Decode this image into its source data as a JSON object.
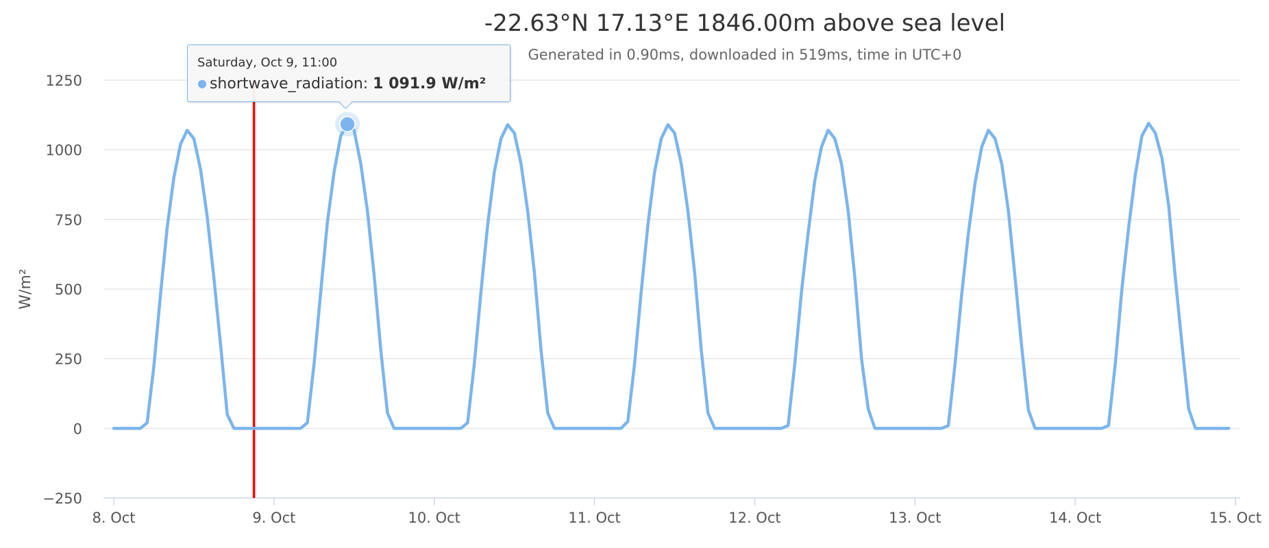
{
  "chart_data": {
    "type": "line",
    "title": "-22.63°N 17.13°E 1846.00m above sea level",
    "subtitle": "Generated in 0.90ms, downloaded in 519ms, time in UTC+0",
    "ylabel": "W/m²",
    "xlabel": "",
    "ylim": [
      -250,
      1250
    ],
    "yticks": [
      -250,
      0,
      250,
      500,
      750,
      1000,
      1250
    ],
    "xlim": [
      "2021-10-08T00:00",
      "2021-10-15T00:00"
    ],
    "xticks": [
      "8. Oct",
      "9. Oct",
      "10. Oct",
      "11. Oct",
      "12. Oct",
      "13. Oct",
      "14. Oct",
      "15. Oct"
    ],
    "grid": true,
    "legend": "none",
    "colors": {
      "series": "#7cb5ec",
      "current_time_line": "#ff0000",
      "grid": "#e6e6e6"
    },
    "current_time_marker": "2021-10-08T21:00",
    "series": [
      {
        "name": "shortwave_radiation",
        "unit": "W/m²",
        "start": "2021-10-08T00:00",
        "interval": "1h",
        "values": [
          0,
          0,
          0,
          0,
          0,
          20,
          220,
          480,
          720,
          900,
          1020,
          1070,
          1040,
          930,
          760,
          540,
          300,
          50,
          0,
          0,
          0,
          0,
          0,
          0,
          0,
          0,
          0,
          0,
          0,
          20,
          230,
          490,
          740,
          920,
          1050,
          1091.9,
          1070,
          950,
          780,
          550,
          280,
          55,
          0,
          0,
          0,
          0,
          0,
          0,
          0,
          0,
          0,
          0,
          0,
          20,
          230,
          490,
          730,
          920,
          1040,
          1090,
          1060,
          950,
          780,
          560,
          280,
          55,
          0,
          0,
          0,
          0,
          0,
          0,
          0,
          0,
          0,
          0,
          0,
          25,
          230,
          490,
          730,
          920,
          1040,
          1090,
          1060,
          950,
          780,
          560,
          280,
          55,
          0,
          0,
          0,
          0,
          0,
          0,
          0,
          0,
          0,
          0,
          0,
          10,
          230,
          490,
          700,
          890,
          1010,
          1070,
          1040,
          950,
          780,
          540,
          250,
          70,
          0,
          0,
          0,
          0,
          0,
          0,
          0,
          0,
          0,
          0,
          0,
          10,
          230,
          480,
          700,
          880,
          1010,
          1070,
          1040,
          950,
          780,
          540,
          290,
          65,
          0,
          0,
          0,
          0,
          0,
          0,
          0,
          0,
          0,
          0,
          0,
          10,
          230,
          500,
          720,
          910,
          1050,
          1095,
          1060,
          970,
          800,
          540,
          300,
          70,
          0,
          0,
          0,
          0,
          0,
          0
        ]
      }
    ],
    "tooltip": {
      "header": "Saturday, Oct 9, 11:00",
      "series_label": "shortwave_radiation: ",
      "value_text": "1 091.9 W/m²",
      "point_time": "2021-10-09T11:00",
      "point_value": 1091.9
    }
  }
}
